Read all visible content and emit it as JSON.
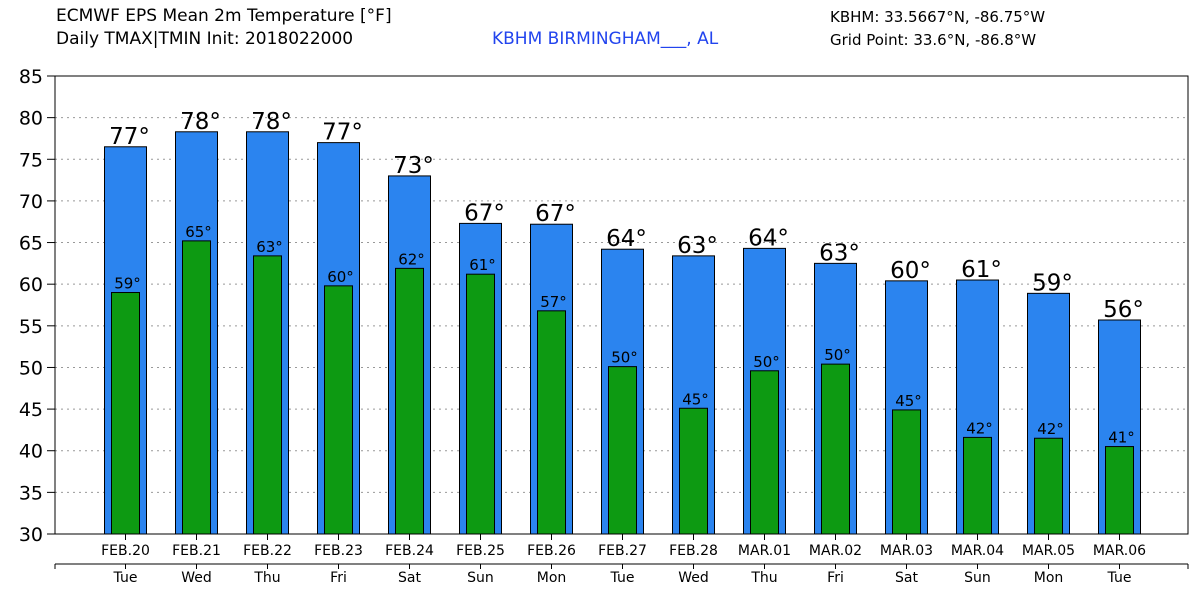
{
  "header": {
    "title_line1": "ECMWF EPS Mean 2m Temperature [°F]",
    "title_line2": "Daily TMAX|TMIN Init: 2018022000",
    "station": "KBHM BIRMINGHAM___, AL",
    "station_coords": "KBHM: 33.5667°N, -86.75°W",
    "grid_point": "Grid Point: 33.6°N, -86.8°W"
  },
  "colors": {
    "tmax": "#2b84ef",
    "tmin": "#0d9a12",
    "grid": "#999999"
  },
  "chart_data": {
    "type": "bar",
    "ylim": [
      30,
      85
    ],
    "yticks": [
      30,
      35,
      40,
      45,
      50,
      55,
      60,
      65,
      70,
      75,
      80,
      85
    ],
    "grid": true,
    "categories": [
      "FEB.20",
      "FEB.21",
      "FEB.22",
      "FEB.23",
      "FEB.24",
      "FEB.25",
      "FEB.26",
      "FEB.27",
      "FEB.28",
      "MAR.01",
      "MAR.02",
      "MAR.03",
      "MAR.04",
      "MAR.05",
      "MAR.06"
    ],
    "weekdays": [
      "Tue",
      "Wed",
      "Thu",
      "Fri",
      "Sat",
      "Sun",
      "Mon",
      "Tue",
      "Wed",
      "Thu",
      "Fri",
      "Sat",
      "Sun",
      "Mon",
      "Tue"
    ],
    "series": [
      {
        "key": "tmax",
        "values": [
          76.5,
          78.3,
          78.3,
          77.0,
          73.0,
          67.3,
          67.2,
          64.2,
          63.4,
          64.3,
          62.5,
          60.4,
          60.5,
          58.9,
          55.7
        ],
        "labels": [
          "77°",
          "78°",
          "78°",
          "77°",
          "73°",
          "67°",
          "67°",
          "64°",
          "63°",
          "64°",
          "63°",
          "60°",
          "61°",
          "59°",
          "56°"
        ]
      },
      {
        "key": "tmin",
        "values": [
          59.0,
          65.2,
          63.4,
          59.8,
          61.9,
          61.2,
          56.8,
          50.1,
          45.1,
          49.6,
          50.4,
          44.9,
          41.6,
          41.5,
          40.5
        ],
        "labels": [
          "59°",
          "65°",
          "63°",
          "60°",
          "62°",
          "61°",
          "57°",
          "50°",
          "45°",
          "50°",
          "50°",
          "45°",
          "42°",
          "42°",
          "41°"
        ]
      }
    ]
  }
}
